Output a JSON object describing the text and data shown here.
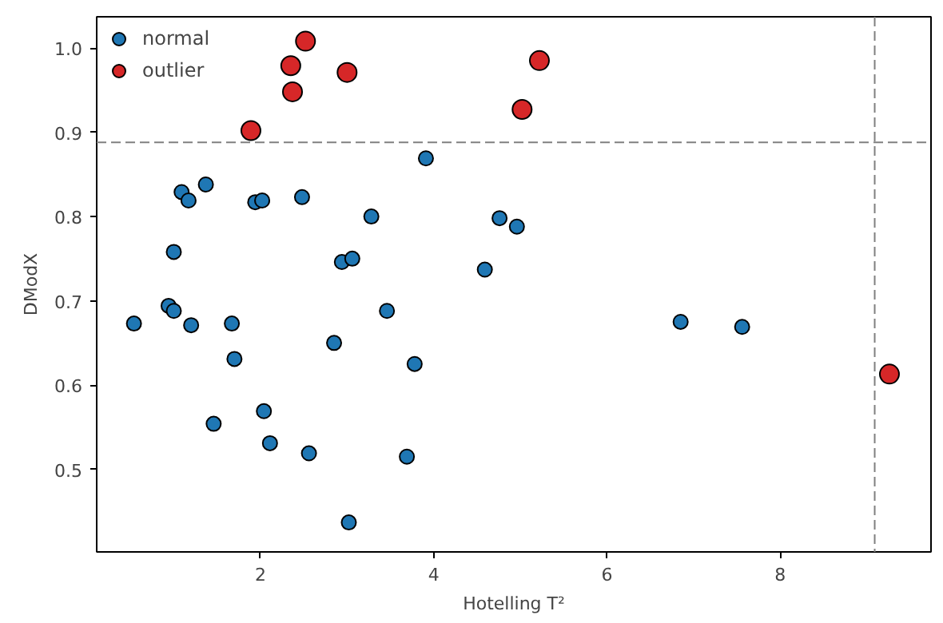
{
  "chart_data": {
    "type": "scatter",
    "xlabel": "Hotelling T²",
    "ylabel": "DModX",
    "xlim": [
      0.11,
      9.74
    ],
    "ylim": [
      0.402,
      1.037
    ],
    "xticks": [
      2,
      4,
      6,
      8
    ],
    "yticks": [
      0.5,
      0.6,
      0.7,
      0.8,
      0.9,
      {
        "value": 1,
        "label": "1.0"
      }
    ],
    "grid": false,
    "legend": "top left",
    "marker": "circle",
    "series": [
      {
        "name": "normal",
        "color": "#1f77b4",
        "x": [
          0.54,
          1.0,
          0.94,
          1.0,
          1.09,
          1.17,
          1.2,
          1.37,
          1.46,
          1.67,
          1.7,
          1.94,
          2.02,
          2.04,
          2.11,
          2.48,
          2.56,
          2.85,
          2.94,
          3.02,
          3.06,
          3.28,
          3.46,
          3.69,
          3.78,
          3.91,
          4.59,
          4.76,
          4.96,
          6.85,
          7.56
        ],
        "values": [
          0.673,
          0.758,
          0.694,
          0.688,
          0.829,
          0.819,
          0.671,
          0.838,
          0.554,
          0.673,
          0.631,
          0.817,
          0.819,
          0.569,
          0.531,
          0.823,
          0.519,
          0.65,
          0.746,
          0.437,
          0.75,
          0.8,
          0.688,
          0.515,
          0.625,
          0.869,
          0.737,
          0.798,
          0.788,
          0.675,
          0.669
        ]
      },
      {
        "name": "outlier",
        "color": "#d62728",
        "x": [
          1.89,
          2.35,
          2.37,
          2.52,
          3.0,
          5.02,
          5.22,
          9.26
        ],
        "values": [
          0.902,
          0.979,
          0.948,
          1.008,
          0.971,
          0.927,
          0.985,
          0.613
        ]
      }
    ],
    "ref_lines": [
      {
        "axis": "y",
        "value": 0.888,
        "color": "#808080",
        "line_style": "dashed"
      },
      {
        "axis": "x",
        "value": 9.09,
        "color": "#808080",
        "line_style": "dashed"
      }
    ]
  }
}
